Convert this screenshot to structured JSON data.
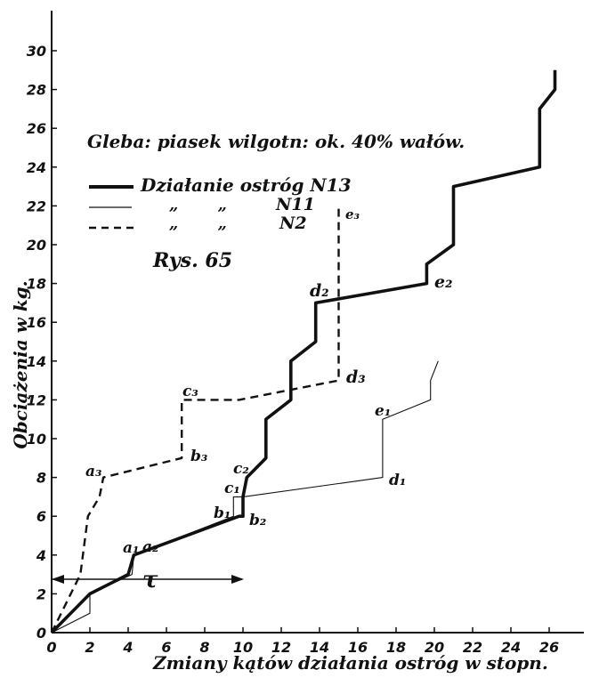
{
  "chart_data": {
    "type": "line",
    "xlabel": "Zmiany kątów działania ostróg w stopn.",
    "ylabel": "Obciążenia w kg.",
    "soil_note": "Gleba: piasek wilgotn: ok. 40% wałów.",
    "figure_label": "Rys. 65",
    "xlim": [
      0,
      28
    ],
    "ylim": [
      0,
      31
    ],
    "x_tick_labels": [
      "0",
      "2",
      "4",
      "6",
      "8",
      "10",
      "12",
      "14",
      "16",
      "18",
      "20",
      "22",
      "24",
      "26"
    ],
    "y_tick_labels": [
      "0",
      "2",
      "4",
      "6",
      "8",
      "10",
      "12",
      "14",
      "16",
      "18",
      "20",
      "22",
      "24",
      "26",
      "28",
      "30"
    ],
    "series": [
      {
        "name": "Działanie ostróg N13",
        "style": "thick",
        "points": [
          [
            0,
            0
          ],
          [
            2,
            2
          ],
          [
            4,
            3
          ],
          [
            4.3,
            4
          ],
          [
            9.8,
            6
          ],
          [
            10,
            6
          ],
          [
            10,
            7
          ],
          [
            10.2,
            8
          ],
          [
            11.2,
            9
          ],
          [
            11.2,
            11
          ],
          [
            12.5,
            12
          ],
          [
            12.5,
            14
          ],
          [
            13.8,
            15
          ],
          [
            13.8,
            17
          ],
          [
            19.6,
            18
          ],
          [
            19.6,
            19
          ],
          [
            21,
            20
          ],
          [
            21,
            23
          ],
          [
            25.5,
            24
          ],
          [
            25.5,
            27
          ],
          [
            26.3,
            28
          ],
          [
            26.3,
            29
          ]
        ]
      },
      {
        "name": "N11",
        "legend_prefix": "„   „",
        "style": "thin",
        "points": [
          [
            0,
            0
          ],
          [
            2,
            1
          ],
          [
            2,
            2
          ],
          [
            4.2,
            3
          ],
          [
            4.3,
            4
          ],
          [
            9.5,
            6
          ],
          [
            9.5,
            7
          ],
          [
            10,
            7
          ],
          [
            17.3,
            8
          ],
          [
            17.3,
            11
          ],
          [
            19.8,
            12
          ],
          [
            19.8,
            13
          ],
          [
            20.2,
            14
          ]
        ]
      },
      {
        "name": "N2",
        "legend_prefix": "„   „",
        "style": "dashed",
        "points": [
          [
            0,
            0
          ],
          [
            1.5,
            3
          ],
          [
            1.9,
            6
          ],
          [
            2.5,
            7
          ],
          [
            2.7,
            8
          ],
          [
            6.8,
            9
          ],
          [
            6.8,
            12
          ],
          [
            9.8,
            12
          ],
          [
            15,
            13
          ],
          [
            15,
            22
          ]
        ]
      }
    ],
    "point_labels": [
      "a₁",
      "a₂",
      "a₃",
      "b₁",
      "b₂",
      "b₃",
      "c₁",
      "c₂",
      "c₃",
      "d₁",
      "d₂",
      "d₃",
      "e₁",
      "e₂",
      "e₃"
    ],
    "tau_label": "τ"
  }
}
